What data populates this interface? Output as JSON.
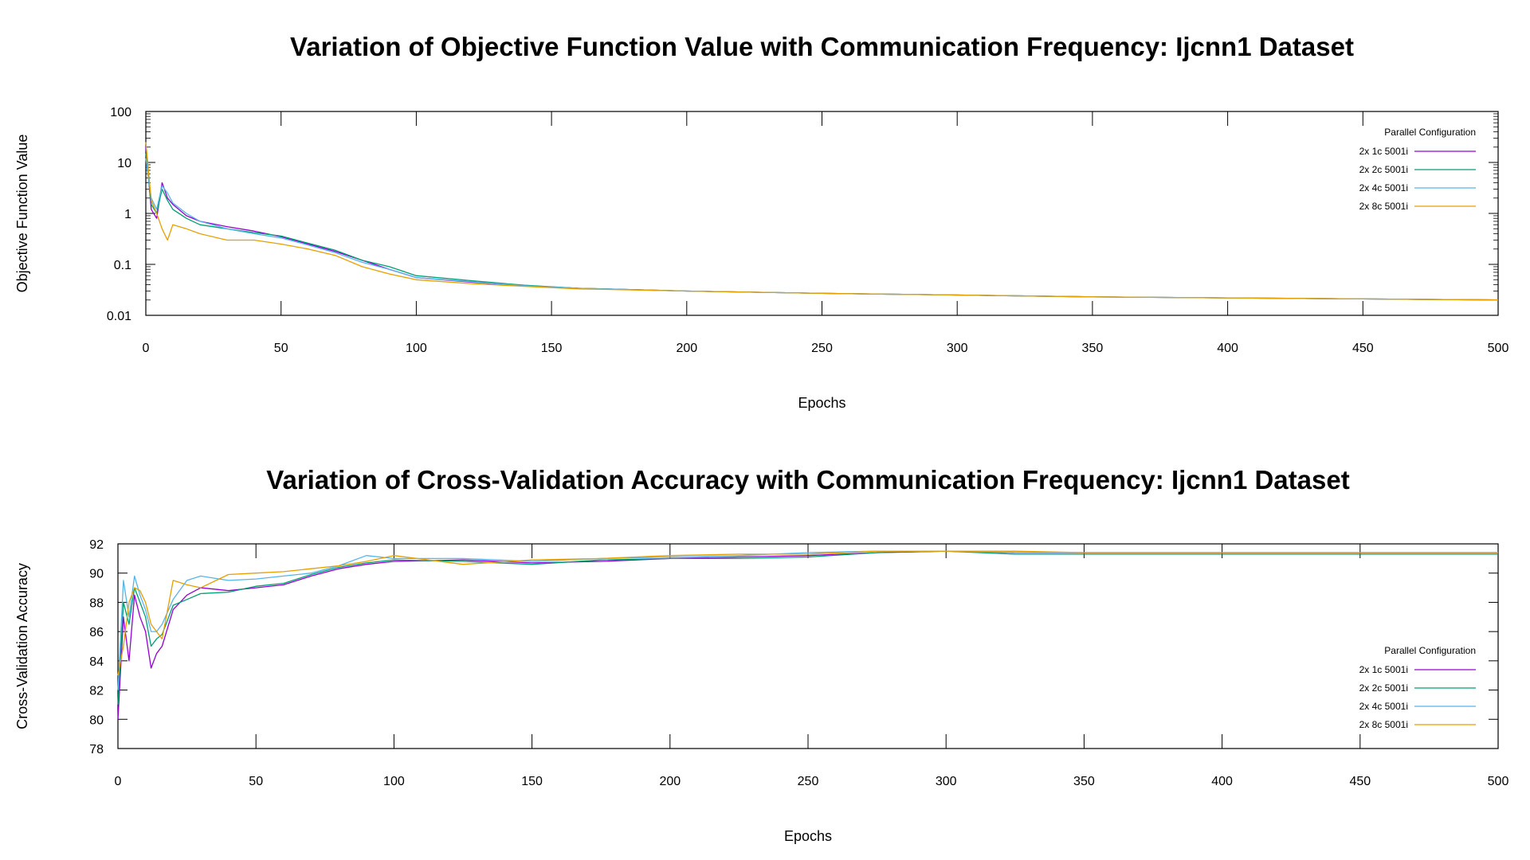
{
  "chart_data": [
    {
      "type": "line",
      "title": "Variation of Objective Function Value with Communication Frequency: Ijcnn1 Dataset",
      "xlabel": "Epochs",
      "ylabel": "Objective Function Value",
      "xlim": [
        0,
        500
      ],
      "ylim": [
        0.01,
        100
      ],
      "yscale": "log",
      "xticks": [
        "0",
        "50",
        "100",
        "150",
        "200",
        "250",
        "300",
        "350",
        "400",
        "450",
        "500"
      ],
      "yticks": [
        "0.01",
        "0.1",
        "1",
        "10",
        "100"
      ],
      "grid": false,
      "legend": {
        "title": "Parallel Configuration",
        "placement": "top-right"
      },
      "series": [
        {
          "name": "2x 1c 5001i",
          "color": "#9400d3",
          "x": [
            0,
            2,
            4,
            6,
            8,
            10,
            15,
            20,
            30,
            40,
            50,
            60,
            70,
            80,
            90,
            100,
            120,
            140,
            160,
            200,
            250,
            300,
            350,
            400,
            450,
            500
          ],
          "values": [
            20,
            1.2,
            0.8,
            4.0,
            2.0,
            1.5,
            0.9,
            0.7,
            0.55,
            0.45,
            0.35,
            0.25,
            0.18,
            0.12,
            0.08,
            0.055,
            0.045,
            0.038,
            0.034,
            0.03,
            0.027,
            0.025,
            0.023,
            0.022,
            0.021,
            0.02
          ]
        },
        {
          "name": "2x 2c 5001i",
          "color": "#009e73",
          "x": [
            0,
            2,
            4,
            6,
            8,
            10,
            15,
            20,
            30,
            40,
            50,
            60,
            70,
            80,
            90,
            100,
            120,
            140,
            160,
            200,
            250,
            300,
            350,
            400,
            450,
            500
          ],
          "values": [
            15,
            1.5,
            1.0,
            3.0,
            1.8,
            1.2,
            0.8,
            0.6,
            0.5,
            0.42,
            0.36,
            0.26,
            0.19,
            0.12,
            0.09,
            0.06,
            0.048,
            0.039,
            0.034,
            0.03,
            0.027,
            0.025,
            0.023,
            0.022,
            0.021,
            0.02
          ]
        },
        {
          "name": "2x 4c 5001i",
          "color": "#56b4e9",
          "x": [
            0,
            2,
            4,
            6,
            8,
            10,
            15,
            20,
            30,
            40,
            50,
            60,
            70,
            80,
            90,
            100,
            120,
            140,
            160,
            200,
            250,
            300,
            350,
            400,
            450,
            500
          ],
          "values": [
            12,
            2.0,
            1.2,
            3.5,
            2.5,
            1.6,
            1.0,
            0.7,
            0.5,
            0.4,
            0.33,
            0.24,
            0.17,
            0.11,
            0.08,
            0.055,
            0.046,
            0.038,
            0.034,
            0.03,
            0.027,
            0.025,
            0.023,
            0.022,
            0.021,
            0.02
          ]
        },
        {
          "name": "2x 8c 5001i",
          "color": "#e69f00",
          "x": [
            0,
            2,
            4,
            6,
            8,
            10,
            15,
            20,
            30,
            40,
            50,
            60,
            70,
            80,
            90,
            100,
            120,
            140,
            160,
            200,
            250,
            300,
            350,
            400,
            450,
            500
          ],
          "values": [
            25,
            1.8,
            1.0,
            0.5,
            0.3,
            0.6,
            0.5,
            0.4,
            0.3,
            0.3,
            0.25,
            0.2,
            0.15,
            0.09,
            0.065,
            0.05,
            0.042,
            0.037,
            0.033,
            0.03,
            0.027,
            0.025,
            0.023,
            0.022,
            0.021,
            0.02
          ]
        }
      ]
    },
    {
      "type": "line",
      "title": "Variation of Cross-Validation Accuracy with Communication Frequency: Ijcnn1 Dataset",
      "xlabel": "Epochs",
      "ylabel": "Cross-Validation Accuracy",
      "xlim": [
        0,
        500
      ],
      "ylim": [
        78,
        92
      ],
      "yscale": "linear",
      "xticks": [
        "0",
        "50",
        "100",
        "150",
        "200",
        "250",
        "300",
        "350",
        "400",
        "450",
        "500"
      ],
      "yticks": [
        "78",
        "80",
        "82",
        "84",
        "86",
        "88",
        "90",
        "92"
      ],
      "grid": false,
      "legend": {
        "title": "Parallel Configuration",
        "placement": "right"
      },
      "series": [
        {
          "name": "2x 1c 5001i",
          "color": "#9400d3",
          "x": [
            0,
            2,
            4,
            6,
            8,
            10,
            12,
            14,
            16,
            20,
            25,
            30,
            40,
            50,
            60,
            70,
            80,
            90,
            100,
            125,
            150,
            175,
            200,
            225,
            250,
            275,
            300,
            325,
            350,
            400,
            450,
            500
          ],
          "values": [
            80.0,
            87.0,
            84.0,
            88.5,
            87.0,
            86.0,
            83.5,
            84.5,
            85.0,
            87.5,
            88.5,
            89.0,
            88.8,
            89.0,
            89.2,
            89.8,
            90.3,
            90.6,
            90.8,
            90.9,
            90.7,
            90.8,
            91.0,
            91.1,
            91.2,
            91.4,
            91.5,
            91.4,
            91.4,
            91.4,
            91.4,
            91.4
          ]
        },
        {
          "name": "2x 2c 5001i",
          "color": "#009e73",
          "x": [
            0,
            2,
            4,
            6,
            8,
            10,
            12,
            14,
            16,
            20,
            25,
            30,
            40,
            50,
            60,
            70,
            80,
            90,
            100,
            125,
            150,
            175,
            200,
            225,
            250,
            275,
            300,
            325,
            350,
            400,
            450,
            500
          ],
          "values": [
            81.0,
            88.0,
            86.5,
            89.0,
            88.0,
            87.0,
            85.0,
            85.5,
            85.8,
            87.8,
            88.2,
            88.6,
            88.7,
            89.1,
            89.3,
            89.9,
            90.4,
            90.7,
            90.9,
            90.8,
            90.6,
            90.9,
            91.0,
            91.0,
            91.1,
            91.4,
            91.5,
            91.3,
            91.3,
            91.3,
            91.3,
            91.3
          ]
        },
        {
          "name": "2x 4c 5001i",
          "color": "#56b4e9",
          "x": [
            0,
            2,
            4,
            6,
            8,
            10,
            12,
            14,
            16,
            20,
            25,
            30,
            40,
            50,
            60,
            70,
            80,
            90,
            100,
            125,
            150,
            175,
            200,
            225,
            250,
            275,
            300,
            325,
            350,
            400,
            450,
            500
          ],
          "values": [
            82.0,
            89.5,
            87.0,
            89.8,
            88.5,
            87.5,
            86.0,
            86.0,
            86.5,
            88.2,
            89.5,
            89.8,
            89.5,
            89.6,
            89.8,
            90.0,
            90.5,
            91.2,
            91.0,
            91.0,
            90.8,
            91.0,
            91.1,
            91.2,
            91.4,
            91.5,
            91.5,
            91.4,
            91.4,
            91.4,
            91.4,
            91.4
          ]
        },
        {
          "name": "2x 8c 5001i",
          "color": "#e69f00",
          "x": [
            0,
            2,
            4,
            6,
            8,
            10,
            12,
            14,
            16,
            20,
            25,
            30,
            40,
            50,
            60,
            70,
            80,
            90,
            100,
            125,
            150,
            175,
            200,
            225,
            250,
            275,
            300,
            325,
            350,
            400,
            450,
            500
          ],
          "values": [
            83.0,
            85.0,
            88.0,
            89.0,
            88.8,
            88.0,
            86.5,
            86.0,
            85.5,
            89.5,
            89.2,
            89.0,
            89.9,
            90.0,
            90.1,
            90.3,
            90.5,
            90.8,
            91.2,
            90.6,
            90.9,
            91.0,
            91.2,
            91.3,
            91.3,
            91.5,
            91.5,
            91.5,
            91.4,
            91.4,
            91.4,
            91.4
          ]
        }
      ]
    }
  ]
}
